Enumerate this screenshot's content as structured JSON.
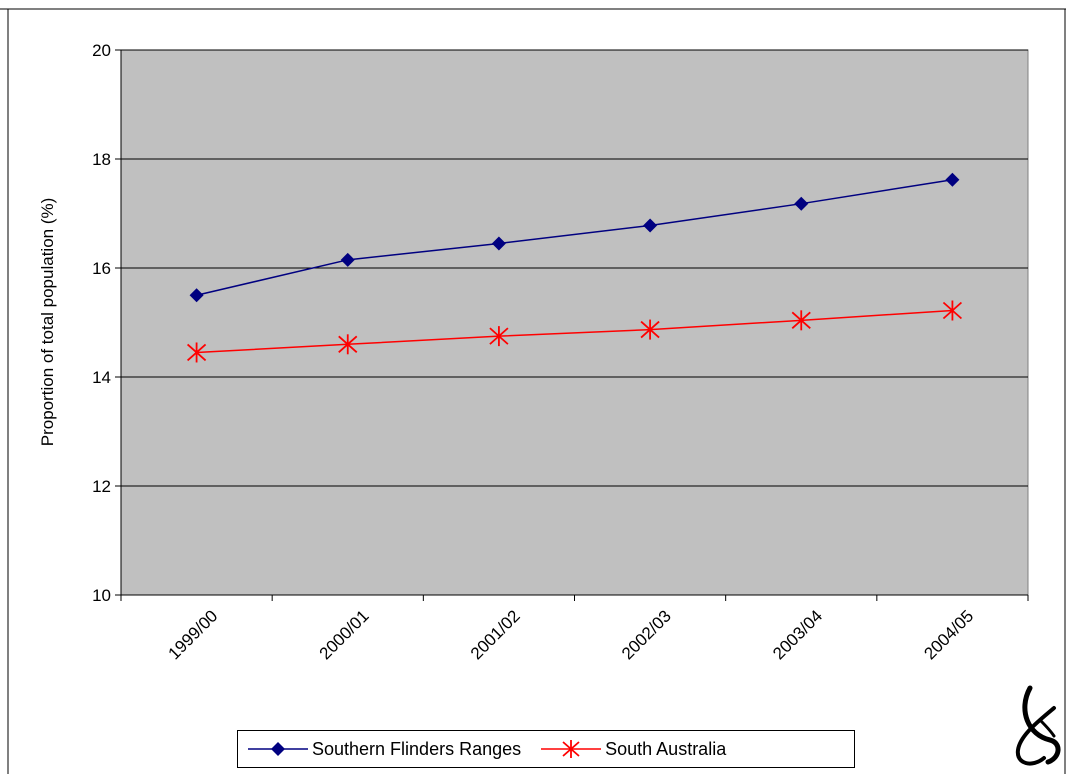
{
  "chart_data": {
    "type": "line",
    "categories": [
      "1999/00",
      "2000/01",
      "2001/02",
      "2002/03",
      "2003/04",
      "2004/05"
    ],
    "series": [
      {
        "name": "Southern Flinders Ranges",
        "values": [
          15.5,
          16.15,
          16.45,
          16.78,
          17.18,
          17.62
        ],
        "color": "#000080",
        "marker": "diamond"
      },
      {
        "name": "South Australia",
        "values": [
          14.45,
          14.6,
          14.75,
          14.87,
          15.04,
          15.22
        ],
        "color": "#ff0000",
        "marker": "asterisk"
      }
    ],
    "title": "",
    "xlabel": "",
    "ylabel": "Proportion of total population (%)",
    "ylim": [
      10,
      20
    ],
    "yticks": [
      "10",
      "12",
      "14",
      "16",
      "18",
      "20"
    ],
    "grid": true,
    "legend_position": "bottom",
    "plot_background": "#c0c0c0"
  },
  "legend": {
    "items": [
      {
        "label": "Southern Flinders Ranges"
      },
      {
        "label": "South Australia"
      }
    ]
  }
}
